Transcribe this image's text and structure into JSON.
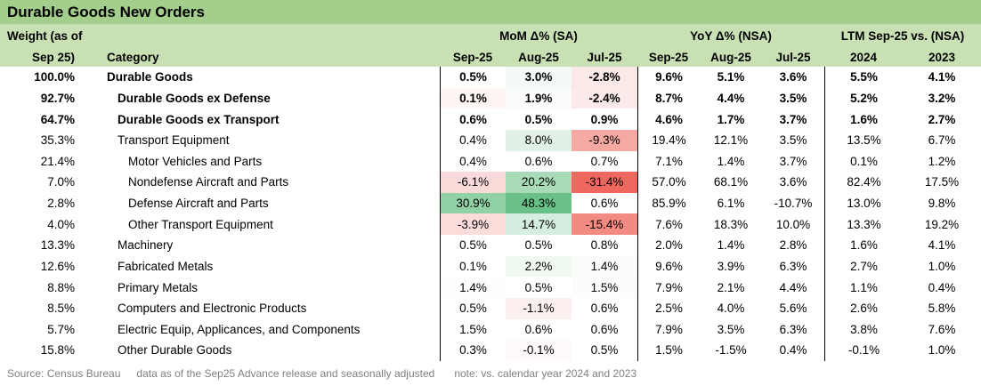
{
  "title": "Durable Goods New Orders",
  "header": {
    "weight_line1": "Weight (as of",
    "weight_line2": "Sep 25)",
    "category_label": "Category",
    "groups": [
      {
        "label": "MoM Δ% (SA)"
      },
      {
        "label": "YoY Δ% (NSA)"
      },
      {
        "label": "LTM Sep-25 vs. (NSA)"
      }
    ],
    "cols": [
      "Sep-25",
      "Aug-25",
      "Jul-25",
      "Sep-25",
      "Aug-25",
      "Jul-25",
      "2024",
      "2023"
    ]
  },
  "colors": {
    "title_bar_bg": "#A4CE8C",
    "header_bg": "#C9E0B4",
    "divider": "#000000",
    "footer_text": "#808080",
    "negative_strong": "#EF685F",
    "positive_strong": "#69C187"
  },
  "chart_data": {
    "type": "table",
    "title": "Durable Goods New Orders",
    "column_groups": [
      "MoM Δ% (SA)",
      "YoY Δ% (NSA)",
      "LTM Sep-25 vs. (NSA)"
    ],
    "columns": [
      "Weight (as of Sep 25)",
      "Category",
      "MoM Sep-25",
      "MoM Aug-25",
      "MoM Jul-25",
      "YoY Sep-25",
      "YoY Aug-25",
      "YoY Jul-25",
      "LTM vs 2024",
      "LTM vs 2023"
    ],
    "rows": [
      {
        "weight": "100.0%",
        "category": "Durable Goods",
        "indent": 0,
        "bold": true,
        "mom": [
          "0.5%",
          "3.0%",
          "-2.8%"
        ],
        "mom_bg": [
          "#FFFFFF",
          "#F3FAF5",
          "#FBE9E8"
        ],
        "yoy": [
          "9.6%",
          "5.1%",
          "3.6%"
        ],
        "ltm": [
          "5.5%",
          "4.1%"
        ]
      },
      {
        "weight": "92.7%",
        "category": "Durable Goods ex Defense",
        "indent": 1,
        "bold": true,
        "mom": [
          "0.1%",
          "1.9%",
          "-2.4%"
        ],
        "mom_bg": [
          "#FEF6F5",
          "#FBFDFB",
          "#FBEAE9"
        ],
        "yoy": [
          "8.7%",
          "4.4%",
          "3.5%"
        ],
        "ltm": [
          "5.2%",
          "3.2%"
        ]
      },
      {
        "weight": "64.7%",
        "category": "Durable Goods ex Transport",
        "indent": 1,
        "bold": true,
        "mom": [
          "0.6%",
          "0.5%",
          "0.9%"
        ],
        "mom_bg": [
          "#FFFFFF",
          "#FFFFFF",
          "#FFFFFF"
        ],
        "yoy": [
          "4.6%",
          "1.7%",
          "3.7%"
        ],
        "ltm": [
          "1.6%",
          "2.7%"
        ]
      },
      {
        "weight": "35.3%",
        "category": "Transport Equipment",
        "indent": 1,
        "bold": false,
        "mom": [
          "0.4%",
          "8.0%",
          "-9.3%"
        ],
        "mom_bg": [
          "#FFFFFF",
          "#E1F1E6",
          "#F5A9A2"
        ],
        "yoy": [
          "19.4%",
          "12.1%",
          "3.5%"
        ],
        "ltm": [
          "13.5%",
          "6.7%"
        ]
      },
      {
        "weight": "21.4%",
        "category": "Motor Vehicles and Parts",
        "indent": 2,
        "bold": false,
        "mom": [
          "0.4%",
          "0.6%",
          "0.7%"
        ],
        "mom_bg": [
          "#FFFFFF",
          "#FFFFFF",
          "#FFFFFF"
        ],
        "yoy": [
          "7.1%",
          "1.4%",
          "3.7%"
        ],
        "ltm": [
          "0.1%",
          "1.2%"
        ]
      },
      {
        "weight": "7.0%",
        "category": "Nondefense Aircraft and Parts",
        "indent": 2,
        "bold": false,
        "mom": [
          "-6.1%",
          "20.2%",
          "-31.4%"
        ],
        "mom_bg": [
          "#F9DAD8",
          "#A9DBB8",
          "#EF685F"
        ],
        "yoy": [
          "57.0%",
          "68.1%",
          "3.6%"
        ],
        "ltm": [
          "82.4%",
          "17.5%"
        ]
      },
      {
        "weight": "2.8%",
        "category": "Defense Aircraft and Parts",
        "indent": 2,
        "bold": false,
        "mom": [
          "30.9%",
          "48.3%",
          "0.6%"
        ],
        "mom_bg": [
          "#90D1A5",
          "#69C187",
          "#FFFFFF"
        ],
        "yoy": [
          "85.9%",
          "6.1%",
          "-10.7%"
        ],
        "ltm": [
          "13.0%",
          "9.8%"
        ]
      },
      {
        "weight": "4.0%",
        "category": "Other Transport Equipment",
        "indent": 2,
        "bold": false,
        "mom": [
          "-3.9%",
          "14.7%",
          "-15.4%"
        ],
        "mom_bg": [
          "#FADDDB",
          "#D5EDDE",
          "#F28C82"
        ],
        "yoy": [
          "7.6%",
          "18.3%",
          "10.0%"
        ],
        "ltm": [
          "13.3%",
          "19.2%"
        ]
      },
      {
        "weight": "13.3%",
        "category": "Machinery",
        "indent": 1,
        "bold": false,
        "mom": [
          "0.5%",
          "0.5%",
          "0.8%"
        ],
        "mom_bg": [
          "#FFFFFF",
          "#FFFFFF",
          "#FFFFFF"
        ],
        "yoy": [
          "2.0%",
          "1.4%",
          "2.8%"
        ],
        "ltm": [
          "1.6%",
          "4.1%"
        ]
      },
      {
        "weight": "12.6%",
        "category": "Fabricated Metals",
        "indent": 1,
        "bold": false,
        "mom": [
          "0.1%",
          "2.2%",
          "1.4%"
        ],
        "mom_bg": [
          "#FFFFFF",
          "#F0F8F2",
          "#FAFCFA"
        ],
        "yoy": [
          "9.6%",
          "3.9%",
          "6.3%"
        ],
        "ltm": [
          "2.7%",
          "1.0%"
        ]
      },
      {
        "weight": "8.8%",
        "category": "Primary Metals",
        "indent": 1,
        "bold": false,
        "mom": [
          "1.4%",
          "0.5%",
          "1.5%"
        ],
        "mom_bg": [
          "#FCFEFC",
          "#FFFFFF",
          "#FBFDFB"
        ],
        "yoy": [
          "7.9%",
          "2.1%",
          "4.4%"
        ],
        "ltm": [
          "1.1%",
          "0.4%"
        ]
      },
      {
        "weight": "8.5%",
        "category": "Computers and Electronic Products",
        "indent": 1,
        "bold": false,
        "mom": [
          "0.5%",
          "-1.1%",
          "0.6%"
        ],
        "mom_bg": [
          "#FFFFFF",
          "#FCF0EF",
          "#FFFFFF"
        ],
        "yoy": [
          "2.5%",
          "4.0%",
          "5.6%"
        ],
        "ltm": [
          "2.6%",
          "5.8%"
        ]
      },
      {
        "weight": "5.7%",
        "category": "Electric Equip, Applicances, and Components",
        "indent": 1,
        "bold": false,
        "mom": [
          "1.5%",
          "0.6%",
          "0.6%"
        ],
        "mom_bg": [
          "#FFFFFF",
          "#FFFFFF",
          "#FFFFFF"
        ],
        "yoy": [
          "7.9%",
          "3.5%",
          "6.3%"
        ],
        "ltm": [
          "3.8%",
          "7.6%"
        ]
      },
      {
        "weight": "15.8%",
        "category": "Other Durable Goods",
        "indent": 1,
        "bold": false,
        "mom": [
          "0.3%",
          "-0.1%",
          "0.5%"
        ],
        "mom_bg": [
          "#FFFFFF",
          "#FEFAFA",
          "#FFFFFF"
        ],
        "yoy": [
          "1.5%",
          "-1.5%",
          "0.4%"
        ],
        "ltm": [
          "-0.1%",
          "1.0%"
        ]
      }
    ]
  },
  "footer": {
    "source": "Source: Census Bureau",
    "data_note": "data as of the Sep25 Advance release and seasonally adjusted",
    "note": "note: vs. calendar year 2024 and 2023"
  }
}
